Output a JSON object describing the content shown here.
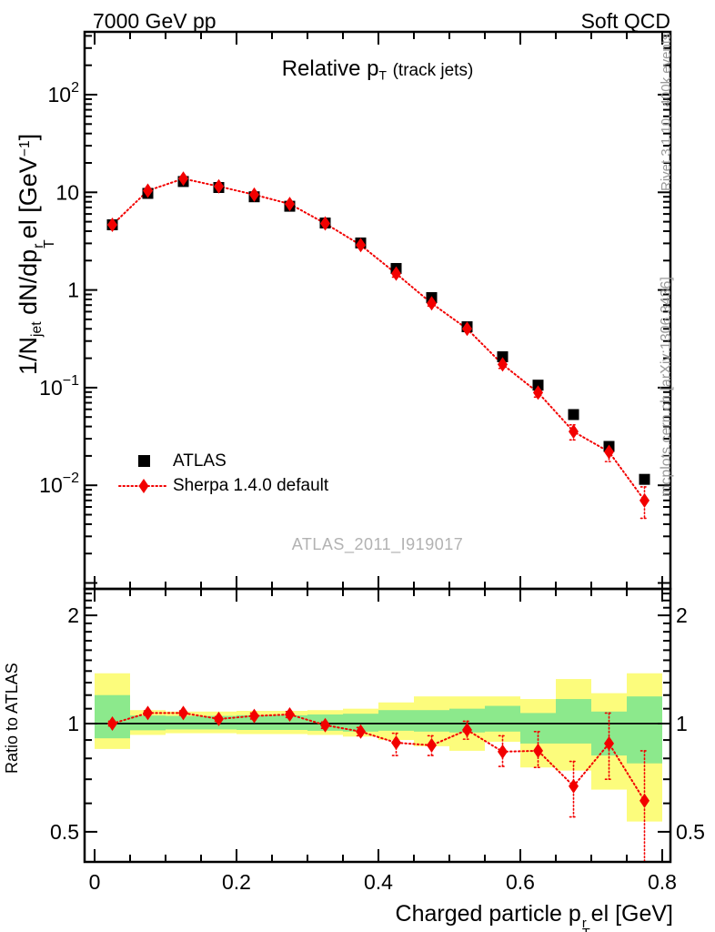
{
  "header": {
    "left": "7000 GeV pp",
    "right": "Soft QCD"
  },
  "titles": {
    "plot": {
      "main": "Relative p",
      "sub": "T",
      "paren": "(track jets)"
    },
    "x_axis": {
      "pre": "Charged particle p",
      "sup": "r",
      "sub": "T",
      "post": "el [GeV]"
    },
    "y_axis": {
      "pre": "1/N",
      "pre_sub": "jet",
      "mid": " dN/dp",
      "sup": "r",
      "sub": "T",
      "post": "el [GeV",
      "exp": "−1",
      "close": "]"
    },
    "ratio_axis": "Ratio to ATLAS"
  },
  "side_texts": {
    "rivet": "Rivet 3.1.10,  400k events",
    "mcplots": "mcplots.cern.ch [arXiv:1306.3436]"
  },
  "watermark": "ATLAS_2011_I919017",
  "legend": {
    "items": [
      {
        "label": "ATLAS",
        "marker": "black-square"
      },
      {
        "label": "Sherpa 1.4.0 default",
        "marker": "red-diamond-dotted-line"
      }
    ]
  },
  "colors": {
    "red": "#f20000",
    "yellow": "#fcfc7c",
    "green": "#8ce98c",
    "gray_text": "#999999",
    "watermark": "#b2b2b2",
    "black": "#000000"
  },
  "chart_data": [
    {
      "type": "scatter",
      "panel": "spectrum",
      "title": "Relative pT (track jets)",
      "xlabel": "Charged particle pT^rel [GeV]",
      "ylabel": "1/Njet dN/dpT^rel [GeV^-1]",
      "y_scale": "log",
      "x_range": [
        0,
        0.8
      ],
      "x_centers": [
        0.025,
        0.075,
        0.125,
        0.175,
        0.225,
        0.275,
        0.325,
        0.375,
        0.425,
        0.475,
        0.525,
        0.575,
        0.625,
        0.675,
        0.725,
        0.775
      ],
      "x_ticks": {
        "values": [
          0,
          0.2,
          0.4,
          0.6,
          0.8
        ],
        "labels": [
          "0",
          "0.2",
          "0.4",
          "0.6",
          "0.8"
        ],
        "minor_step": 0.05
      },
      "y_ticks": {
        "labeled_exponents": [
          2,
          1,
          0,
          -1,
          -2
        ],
        "major_exponents": [
          2,
          1,
          0,
          -1,
          -2,
          -3
        ]
      },
      "series": [
        {
          "name": "ATLAS",
          "marker": "square",
          "color": "#000000",
          "values": [
            4.65,
            9.75,
            12.9,
            11.2,
            9.0,
            7.2,
            4.85,
            3.03,
            1.66,
            0.835,
            0.42,
            0.207,
            0.106,
            0.053,
            0.025,
            0.0115
          ]
        },
        {
          "name": "Sherpa 1.4.0 default",
          "marker": "diamond",
          "color": "#f20000",
          "line": "dotted",
          "values": [
            4.65,
            10.4,
            13.8,
            11.5,
            9.45,
            7.6,
            4.8,
            2.88,
            1.47,
            0.73,
            0.4,
            0.173,
            0.089,
            0.0355,
            0.022,
            0.007
          ]
        }
      ]
    },
    {
      "type": "ratio",
      "panel": "ratio",
      "ylabel": "Ratio to ATLAS",
      "y_scale": "log",
      "y_ticks": {
        "values": [
          0.5,
          1,
          2
        ],
        "labels": [
          "0.5",
          "1",
          "2"
        ],
        "minor": [
          0.6,
          0.7,
          0.8,
          0.9,
          1.1,
          1.2,
          1.3,
          1.4,
          1.5,
          1.6,
          1.7,
          1.8,
          1.9,
          2.1,
          2.2,
          2.3
        ]
      },
      "values": [
        1.0,
        1.07,
        1.07,
        1.03,
        1.05,
        1.06,
        0.99,
        0.95,
        0.885,
        0.87,
        0.96,
        0.835,
        0.84,
        0.67,
        0.88,
        0.61
      ],
      "err_lo": [
        0.015,
        0.015,
        0.015,
        0.015,
        0.02,
        0.02,
        0.02,
        0.025,
        0.07,
        0.055,
        0.055,
        0.075,
        0.085,
        0.12,
        0.18,
        0.21
      ],
      "err_hi": [
        0.015,
        0.015,
        0.015,
        0.015,
        0.02,
        0.02,
        0.02,
        0.025,
        0.055,
        0.055,
        0.055,
        0.09,
        0.11,
        0.115,
        0.19,
        0.23
      ],
      "bands": {
        "bin_edges": [
          0,
          0.05,
          0.1,
          0.15,
          0.2,
          0.25,
          0.3,
          0.35,
          0.4,
          0.45,
          0.5,
          0.55,
          0.6,
          0.65,
          0.7,
          0.75,
          0.8
        ],
        "yellow": [
          [
            0.85,
            1.38
          ],
          [
            0.93,
            1.09
          ],
          [
            0.94,
            1.08
          ],
          [
            0.94,
            1.08
          ],
          [
            0.935,
            1.085
          ],
          [
            0.935,
            1.085
          ],
          [
            0.93,
            1.09
          ],
          [
            0.92,
            1.1
          ],
          [
            0.9,
            1.145
          ],
          [
            0.865,
            1.19
          ],
          [
            0.84,
            1.19
          ],
          [
            0.89,
            1.19
          ],
          [
            0.755,
            1.17
          ],
          [
            0.74,
            1.33
          ],
          [
            0.655,
            1.215
          ],
          [
            0.534,
            1.38
          ]
        ],
        "green": [
          [
            0.91,
            1.2
          ],
          [
            0.958,
            1.053
          ],
          [
            0.963,
            1.05
          ],
          [
            0.963,
            1.05
          ],
          [
            0.96,
            1.055
          ],
          [
            0.96,
            1.055
          ],
          [
            0.955,
            1.06
          ],
          [
            0.95,
            1.065
          ],
          [
            0.955,
            1.09
          ],
          [
            0.95,
            1.09
          ],
          [
            0.945,
            1.1
          ],
          [
            0.95,
            1.12
          ],
          [
            0.88,
            1.07
          ],
          [
            0.88,
            1.17
          ],
          [
            0.815,
            1.08
          ],
          [
            0.775,
            1.19
          ]
        ]
      }
    }
  ]
}
